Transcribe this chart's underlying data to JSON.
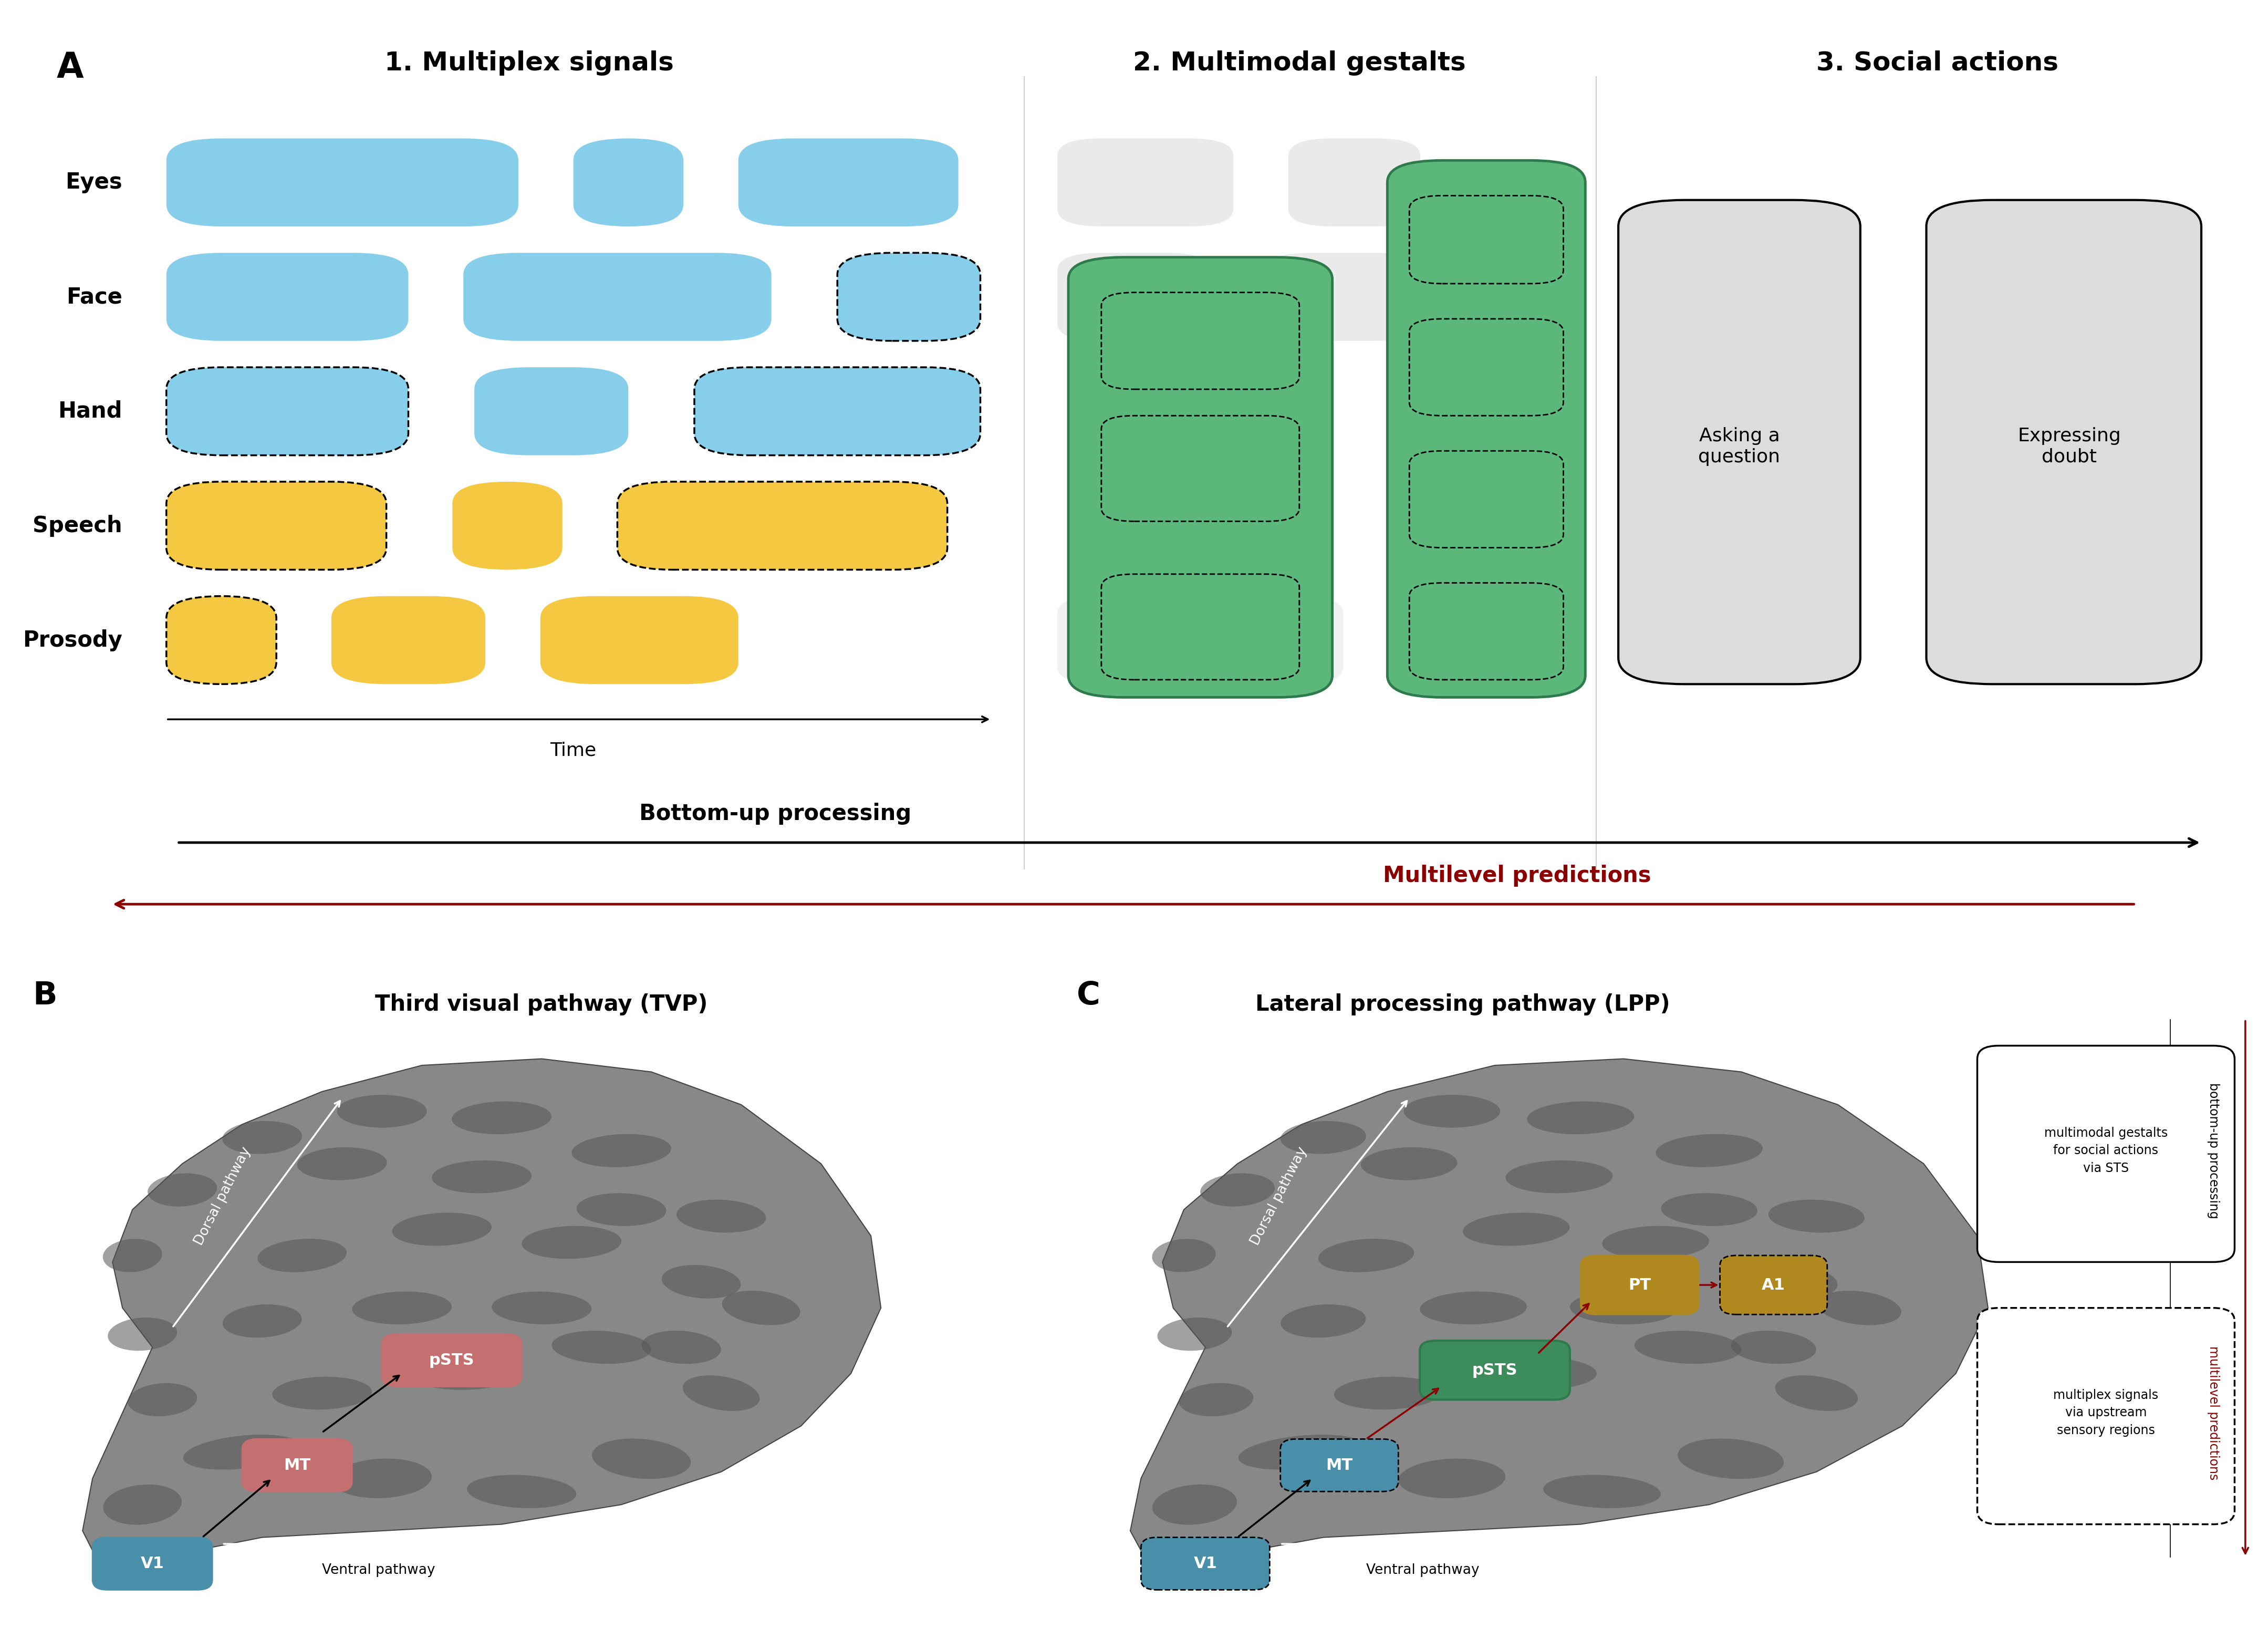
{
  "fig_width": 43.18,
  "fig_height": 31.2,
  "bg_color": "#ffffff",
  "panel_A_title": "A",
  "section1_title": "1. Multiplex signals",
  "section2_title": "2. Multimodal gestalts",
  "section3_title": "3. Social actions",
  "row_labels": [
    "Eyes",
    "Face",
    "Hand",
    "Speech",
    "Prosody"
  ],
  "blue_color": "#87CEEB",
  "gold_color": "#F5C842",
  "green_color": "#5CB87A",
  "green_dark": "#2d7a4a",
  "gray_light": "#DCDCDC",
  "gray_bg": "#E8E8E8",
  "dashed_color": "#111111",
  "dark_red": "#8B0000",
  "bottom_up_label": "Bottom-up processing",
  "multilevel_label": "Multilevel predictions",
  "time_label": "Time",
  "panel_B_title": "B",
  "panel_B_subtitle": "Third visual pathway (TVP)",
  "panel_C_title": "C",
  "panel_C_subtitle": "Lateral processing pathway (LPP)",
  "asking_question": "Asking a\nquestion",
  "expressing_doubt": "Expressing\ndoubt",
  "legend_box1": "multimodal gestalts\nfor social actions\nvia STS",
  "legend_box2": "multiplex signals\nvia upstream\nsensory regions",
  "legend_right1": "bottom-up processing",
  "legend_right2": "multilevel predictions",
  "v1_color": "#4a8faa",
  "mt_color_B": "#c47070",
  "psts_color_B": "#c47070",
  "mt_color_C": "#4a8faa",
  "psts_color_C": "#3d8c5c",
  "pt_color": "#b08820",
  "a1_color": "#b08820",
  "brain_gray": "#888888",
  "brain_dark": "#555555",
  "brain_edge": "#444444"
}
